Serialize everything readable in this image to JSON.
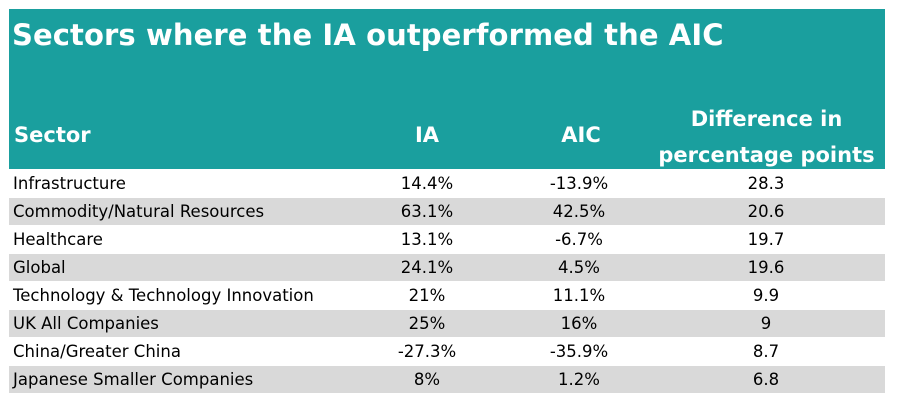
{
  "table": {
    "title": "Sectors where the IA outperformed the AIC",
    "headers": {
      "sector": "Sector",
      "ia": "IA",
      "aic": "AIC",
      "difference": "Difference in percentage points"
    },
    "rows": [
      {
        "sector": "Infrastructure",
        "ia": "14.4%",
        "aic": "-13.9%",
        "difference": "28.3"
      },
      {
        "sector": "Commodity/Natural Resources",
        "ia": "63.1%",
        "aic": "42.5%",
        "difference": "20.6"
      },
      {
        "sector": "Healthcare",
        "ia": "13.1%",
        "aic": "-6.7%",
        "difference": "19.7"
      },
      {
        "sector": "Global",
        "ia": "24.1%",
        "aic": "4.5%",
        "difference": "19.6"
      },
      {
        "sector": "Technology & Technology Innovation",
        "ia": "21%",
        "aic": "11.1%",
        "difference": "9.9"
      },
      {
        "sector": "UK All Companies",
        "ia": "25%",
        "aic": "16%",
        "difference": "9"
      },
      {
        "sector": "China/Greater China",
        "ia": "-27.3%",
        "aic": "-35.9%",
        "difference": "8.7"
      },
      {
        "sector": "Japanese Smaller Companies",
        "ia": "8%",
        "aic": "1.2%",
        "difference": "6.8"
      }
    ]
  },
  "colors": {
    "header_bg": "#1a9f9e",
    "header_text": "#ffffff",
    "stripe": "#d9d9d9"
  }
}
